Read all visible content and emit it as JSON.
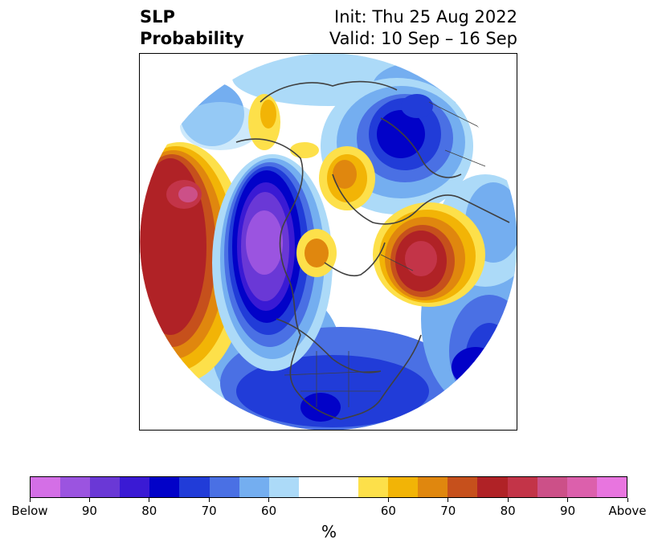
{
  "header": {
    "title_line1": "SLP",
    "title_line2": "Probability",
    "init": "Init: Thu 25 Aug 2022",
    "valid": "Valid: 10 Sep – 16 Sep"
  },
  "colorbar": {
    "colors": [
      "#d46fe6",
      "#9b54e0",
      "#6a38d6",
      "#3a1ad4",
      "#0202c8",
      "#213cd8",
      "#4a70e4",
      "#74aef0",
      "#acdaf8",
      "#ffffff",
      "#ffffff",
      "#fde04a",
      "#f2b406",
      "#e0870e",
      "#c6501c",
      "#b02226",
      "#c33448",
      "#cc5088",
      "#dc60ac",
      "#e875df"
    ],
    "tick_labels": [
      "Below",
      "90",
      "80",
      "70",
      "60",
      "60",
      "70",
      "80",
      "90",
      "Above"
    ],
    "units": "%"
  },
  "map": {
    "projection": "north-polar-stereographic",
    "regions": [
      {
        "name": "north-pacific-above-normal",
        "sign": "above",
        "max_category": "80-85"
      },
      {
        "name": "western-canada-below-normal",
        "sign": "below",
        "max_category": "90-95"
      },
      {
        "name": "hudson-bay-above-normal",
        "sign": "above",
        "max_category": "70-75"
      },
      {
        "name": "scandinavia-above-normal",
        "sign": "above",
        "max_category": "85-90"
      },
      {
        "name": "west-siberia-above-normal",
        "sign": "above",
        "max_category": "70-75"
      },
      {
        "name": "central-siberia-below-normal",
        "sign": "below",
        "max_category": "80-85"
      },
      {
        "name": "north-atlantic-below-normal",
        "sign": "below",
        "max_category": "80-85"
      },
      {
        "name": "gulf-of-mexico-below-normal",
        "sign": "below",
        "max_category": "80-85"
      }
    ]
  }
}
